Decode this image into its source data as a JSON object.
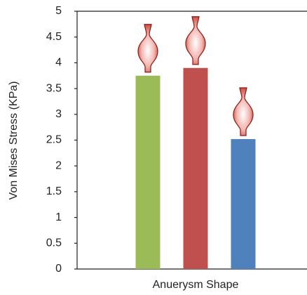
{
  "chart_data": {
    "type": "bar",
    "y_label": "Von Mises Stress (KPa)",
    "x_label": "Anuerysm Shape",
    "categories": [
      null,
      null,
      null
    ],
    "values": [
      3.75,
      3.9,
      2.52
    ],
    "colors": [
      "#9bbb59",
      "#c0504d",
      "#4f81bd"
    ],
    "ylim": [
      0,
      5
    ],
    "yticks": [
      0,
      0.5,
      1,
      1.5,
      2,
      2.5,
      3,
      3.5,
      4,
      4.5,
      5
    ],
    "grid": false
  }
}
